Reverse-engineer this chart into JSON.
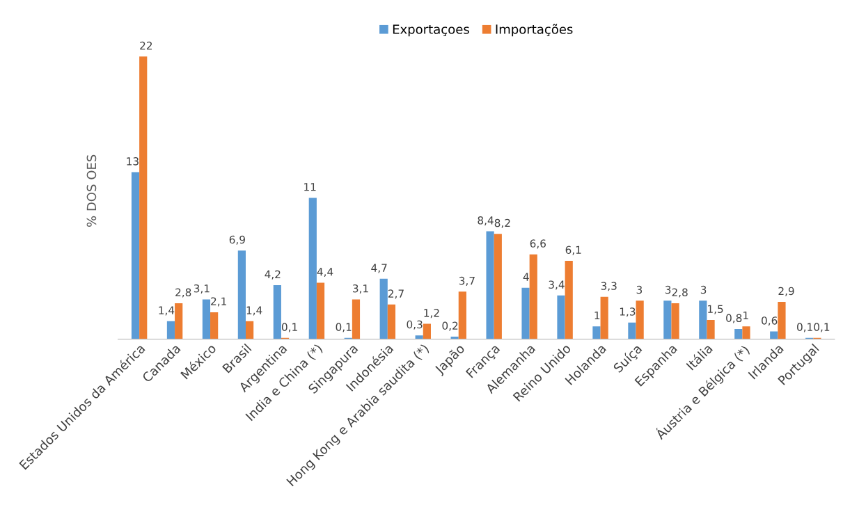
{
  "chart_data": {
    "type": "bar",
    "ylabel": "% DOS OES",
    "legend": "top",
    "categories": [
      "Estados Unidos da América",
      "Canada",
      "México",
      "Brasil",
      "Argentina",
      "India e China (*)",
      "Singapura",
      "Indonésia",
      "Hong Kong e Arabia saudita (*)",
      "Japão",
      "França",
      "Alemanha",
      "Reino Unido",
      "Holanda",
      "Suíça",
      "Espanha",
      "Itália",
      "Áustria e Bélgica (*)",
      "Irlanda",
      "Portugal"
    ],
    "tick_labels": "x",
    "grid": false,
    "series": [
      {
        "name": "Exportaçoes",
        "color": "#5b9bd5",
        "values": [
          13,
          1.4,
          3.1,
          6.9,
          4.2,
          11,
          0.1,
          4.7,
          0.3,
          0.2,
          8.4,
          4,
          3.4,
          1,
          1.3,
          3,
          3,
          0.8,
          0.6,
          0.1
        ],
        "value_labels": [
          "13",
          "1,4",
          "3,1",
          "6,9",
          "4,2",
          "11",
          "0,1",
          "4,7",
          "0,3",
          "0,2",
          "8,4",
          "4",
          "3,4",
          "1",
          "1,3",
          "3",
          "3",
          "0,8",
          "0,6",
          "0,1"
        ]
      },
      {
        "name": "Importações",
        "color": "#ed7d31",
        "values": [
          22,
          2.8,
          2.1,
          1.4,
          0.1,
          4.4,
          3.1,
          2.7,
          1.2,
          3.7,
          8.2,
          6.6,
          6.1,
          3.3,
          3,
          2.8,
          1.5,
          1,
          2.9,
          0.1
        ],
        "value_labels": [
          "22",
          "2,8",
          "2,1",
          "1,4",
          "0,1",
          "4,4",
          "3,1",
          "2,7",
          "1,2",
          "3,7",
          "8,2",
          "6,6",
          "6,1",
          "3,3",
          "3",
          "2,8",
          "1,5",
          "1",
          "2,9",
          "0,1"
        ]
      }
    ]
  }
}
